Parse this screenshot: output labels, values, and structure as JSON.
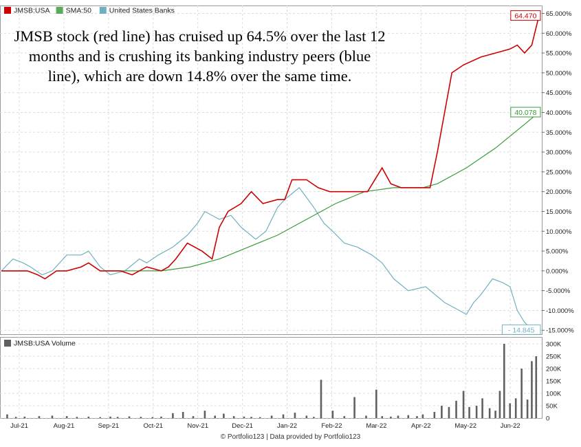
{
  "annotation": "JMSB stock (red line) has cruised up 64.5% over the last 12 months and is crushing its banking industry peers (blue line), which are down 14.8% over the same time.",
  "footer": "© Portfolio123 | Data provided by Portfolio123",
  "colors": {
    "jmsb": "#cc0000",
    "sma": "#3a9a3a",
    "banks": "#6fb0c0",
    "volume": "#606060",
    "grid": "#dcdcdc"
  },
  "chart_data": [
    {
      "type": "line",
      "legend": [
        {
          "name": "JMSB:USA",
          "color": "#cc0000"
        },
        {
          "name": "SMA:50",
          "color": "#5aaa5a"
        },
        {
          "name": "United States Banks",
          "color": "#6fb0c0"
        }
      ],
      "x_ticks": [
        "Jul-21",
        "Aug-21",
        "Sep-21",
        "Oct-21",
        "Nov-21",
        "Dec-21",
        "Jan-22",
        "Feb-22",
        "Mar-22",
        "Apr-22",
        "May-22",
        "Jun-22"
      ],
      "x_range": [
        0,
        370
      ],
      "ylim": [
        -16,
        67
      ],
      "y_ticks": [
        65,
        60,
        55,
        50,
        45,
        40,
        35,
        30,
        25,
        20,
        15,
        10,
        5,
        0,
        -5,
        -10,
        -15
      ],
      "y_tick_labels": [
        "65.000%",
        "60.000%",
        "55.000%",
        "50.000%",
        "45.000%",
        "40.000%",
        "35.000%",
        "30.000%",
        "25.000%",
        "20.000%",
        "15.000%",
        "10.000%",
        "5.000%",
        "0.000%",
        "-5.000%",
        "-10.000%",
        "-15.000%"
      ],
      "end_labels": {
        "jmsb": "64.470",
        "sma": "40.078",
        "banks": "- 14.845"
      },
      "series": [
        {
          "name": "JMSB:USA",
          "key": "jmsb",
          "x": [
            0,
            10,
            18,
            25,
            30,
            38,
            45,
            55,
            60,
            68,
            75,
            82,
            90,
            100,
            110,
            115,
            120,
            128,
            138,
            145,
            150,
            156,
            165,
            172,
            180,
            190,
            195,
            200,
            210,
            218,
            226,
            235,
            245,
            252,
            262,
            268,
            275,
            285,
            295,
            300,
            310,
            318,
            330,
            340,
            350,
            355,
            360,
            365,
            370
          ],
          "y": [
            0,
            0,
            0,
            -1,
            -2,
            0,
            0,
            1,
            2,
            0,
            0,
            0,
            -1,
            1,
            0,
            1,
            3,
            7,
            5,
            3,
            11,
            15,
            17,
            20,
            17,
            18,
            18,
            23,
            23,
            21,
            20,
            20,
            20,
            20,
            26,
            22,
            21,
            21,
            21,
            30,
            50,
            52,
            54,
            55,
            56,
            57,
            55,
            57,
            64.47
          ]
        },
        {
          "name": "SMA:50",
          "key": "sma",
          "x": [
            70,
            90,
            110,
            130,
            150,
            170,
            190,
            210,
            230,
            250,
            270,
            280,
            290,
            300,
            320,
            340,
            360,
            370
          ],
          "y": [
            0,
            0,
            0,
            1,
            3,
            6,
            9,
            13,
            17,
            20,
            21,
            21,
            21,
            22,
            26,
            31,
            37,
            40.078
          ]
        },
        {
          "name": "United States Banks",
          "key": "banks",
          "x": [
            0,
            8,
            15,
            20,
            28,
            35,
            45,
            55,
            60,
            68,
            75,
            85,
            95,
            100,
            108,
            118,
            128,
            135,
            140,
            150,
            158,
            165,
            175,
            182,
            190,
            195,
            205,
            215,
            222,
            228,
            236,
            245,
            255,
            262,
            270,
            280,
            292,
            305,
            315,
            320,
            325,
            330,
            338,
            345,
            350,
            355,
            360,
            366,
            370
          ],
          "y": [
            0,
            3,
            2,
            1,
            -1,
            0,
            4,
            4,
            5,
            1,
            -1,
            0,
            3,
            2,
            4,
            6,
            9,
            12,
            15,
            13,
            14,
            11,
            8,
            10,
            16,
            18,
            21,
            16,
            12,
            10,
            7,
            6,
            4,
            2,
            -2,
            -5,
            -4,
            -8,
            -10,
            -11,
            -8,
            -6,
            -2,
            -3,
            -4,
            -10,
            -13,
            -15,
            -14.845
          ]
        }
      ]
    },
    {
      "type": "bar",
      "legend": [
        {
          "name": "JMSB:USA Volume",
          "color": "#606060"
        }
      ],
      "x_range": [
        0,
        370
      ],
      "ylim": [
        0,
        300
      ],
      "y_ticks": [
        0,
        50,
        100,
        150,
        200,
        250,
        300
      ],
      "y_tick_labels": [
        "0",
        "50K",
        "100K",
        "150K",
        "200K",
        "250K",
        "300K"
      ],
      "x": [
        4,
        10,
        16,
        26,
        35,
        45,
        52,
        60,
        68,
        75,
        80,
        88,
        96,
        104,
        110,
        118,
        125,
        132,
        140,
        147,
        153,
        160,
        167,
        172,
        178,
        186,
        194,
        202,
        210,
        215,
        220,
        228,
        236,
        243,
        251,
        258,
        262,
        268,
        273,
        280,
        286,
        290,
        298,
        303,
        308,
        313,
        318,
        322,
        327,
        331,
        336,
        340,
        343,
        346,
        350,
        354,
        358,
        362,
        365,
        368
      ],
      "values": [
        15,
        5,
        6,
        8,
        10,
        8,
        5,
        6,
        4,
        6,
        5,
        7,
        5,
        4,
        6,
        20,
        25,
        8,
        30,
        10,
        18,
        8,
        6,
        5,
        4,
        10,
        15,
        22,
        10,
        5,
        155,
        30,
        8,
        85,
        10,
        115,
        8,
        6,
        10,
        12,
        8,
        15,
        25,
        50,
        45,
        70,
        110,
        45,
        50,
        80,
        40,
        30,
        110,
        300,
        60,
        80,
        200,
        75,
        230,
        250
      ]
    }
  ]
}
